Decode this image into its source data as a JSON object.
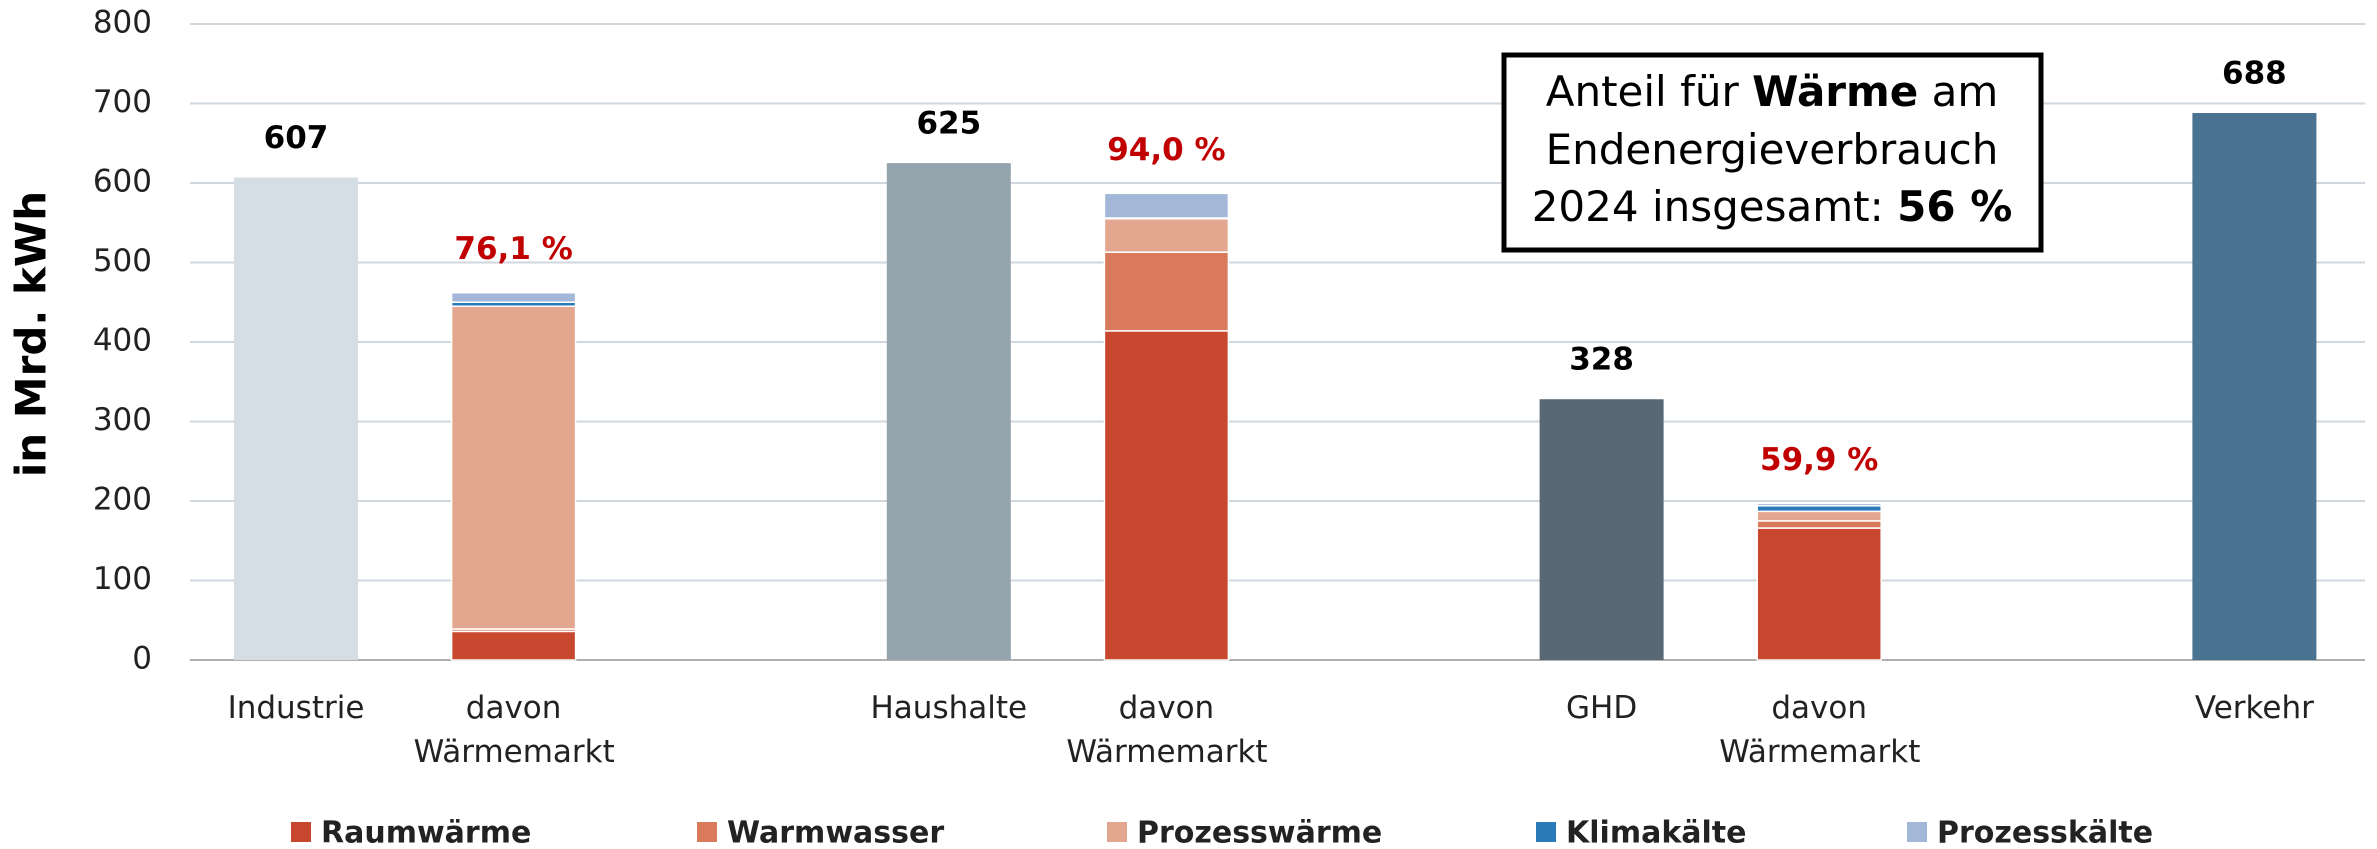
{
  "chart_data": {
    "type": "bar",
    "stacked": true,
    "y_label": "in Mrd. kWh",
    "categories": [
      "Industrie",
      "davon Wärmemarkt",
      "Haushalte",
      "davon Wärmemarkt",
      "GHD",
      "davon Wärmemarkt",
      "Verkehr"
    ],
    "series": [
      {
        "name": "Raumwärme",
        "color": "#c8472f",
        "values": [
          null,
          36,
          null,
          414,
          null,
          166,
          null
        ]
      },
      {
        "name": "Warmwasser",
        "color": "#d97a5c",
        "values": [
          null,
          3,
          null,
          99,
          null,
          9,
          null
        ]
      },
      {
        "name": "Prozesswärme",
        "color": "#e3a78f",
        "values": [
          null,
          406,
          null,
          42,
          null,
          12,
          null
        ]
      },
      {
        "name": "Klimakälte",
        "color": "#2b7bb9",
        "values": [
          null,
          5,
          null,
          1,
          null,
          7,
          null
        ]
      },
      {
        "name": "Prozesskälte",
        "color": "#a3b8d9",
        "values": [
          null,
          12,
          null,
          31,
          null,
          3,
          null
        ]
      }
    ],
    "totals": {
      "values": [
        607,
        null,
        625,
        null,
        328,
        null,
        688
      ],
      "colors": [
        "#d6dee5",
        null,
        "#95a3ad",
        null,
        "#586875",
        null,
        "#4a7291"
      ]
    },
    "shares": {
      "values": [
        null,
        76.1,
        null,
        94.0,
        null,
        59.9,
        null
      ],
      "value_labels": [
        null,
        "76,1 %",
        null,
        "94,0 %",
        null,
        "59,9 %",
        null
      ],
      "color": "#c00000"
    },
    "annotation": {
      "lines": [
        [
          {
            "text": "Anteil für ",
            "bold": false
          },
          {
            "text": "Wärme",
            "bold": true
          },
          {
            "text": " am",
            "bold": false
          }
        ],
        [
          {
            "text": "Endenergieverbrauch",
            "bold": false
          }
        ],
        [
          {
            "text": "2024 insgesamt: ",
            "bold": false
          },
          {
            "text": "56 %",
            "bold": true
          }
        ]
      ]
    },
    "ylim": [
      0,
      800
    ],
    "yticks": [
      0,
      100,
      200,
      300,
      400,
      500,
      600,
      700,
      800
    ],
    "grid": true,
    "legend": "bottom"
  }
}
